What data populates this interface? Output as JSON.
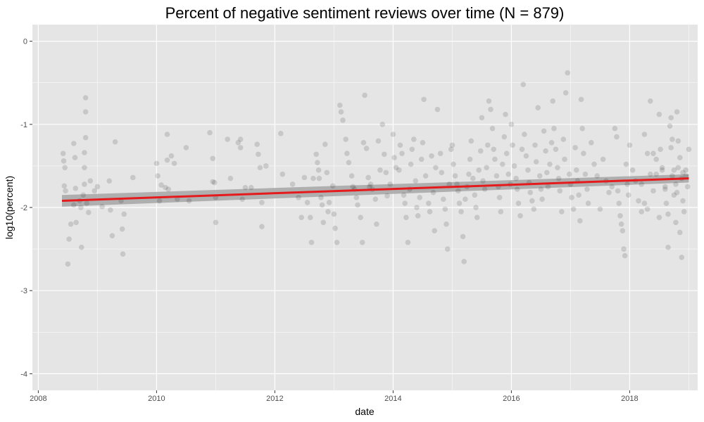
{
  "chart_data": {
    "type": "scatter",
    "title": "Percent of negative sentiment reviews over time (N = 879)",
    "xlabel": "date",
    "ylabel": "log10(percent)",
    "xlim": [
      2007.9,
      2019.15
    ],
    "ylim": [
      -4.2,
      0.2
    ],
    "x_ticks": [
      2008,
      2010,
      2012,
      2014,
      2016,
      2018
    ],
    "y_ticks": [
      0,
      -1,
      -2,
      -3,
      -4
    ],
    "grid": true,
    "legend": "none",
    "colors": {
      "panel": "#e5e5e5",
      "grid": "#ffffff",
      "point": "#000000",
      "trend": "#e41a1c",
      "ribbon": "#a6a6a6"
    },
    "trend_line": {
      "x": [
        2008.4,
        2019.0
      ],
      "y": [
        -1.92,
        -1.65
      ],
      "ci_low": [
        -1.99,
        -1.7
      ],
      "ci_high": [
        -1.85,
        -1.6
      ]
    },
    "points": [
      [
        2008.42,
        -1.35
      ],
      [
        2008.43,
        -1.44
      ],
      [
        2008.45,
        -1.52
      ],
      [
        2008.44,
        -1.74
      ],
      [
        2008.46,
        -1.8
      ],
      [
        2008.5,
        -2.68
      ],
      [
        2008.52,
        -2.38
      ],
      [
        2008.55,
        -2.2
      ],
      [
        2008.6,
        -1.23
      ],
      [
        2008.62,
        -1.4
      ],
      [
        2008.63,
        -1.77
      ],
      [
        2008.6,
        -1.97
      ],
      [
        2008.64,
        -2.18
      ],
      [
        2008.7,
        -1.92
      ],
      [
        2008.72,
        -2.0
      ],
      [
        2008.73,
        -2.48
      ],
      [
        2008.76,
        -1.85
      ],
      [
        2008.78,
        -1.72
      ],
      [
        2008.78,
        -1.52
      ],
      [
        2008.78,
        -1.34
      ],
      [
        2008.8,
        -0.85
      ],
      [
        2008.8,
        -0.68
      ],
      [
        2008.8,
        -1.16
      ],
      [
        2008.82,
        -1.95
      ],
      [
        2008.85,
        -2.06
      ],
      [
        2008.88,
        -1.68
      ],
      [
        2008.95,
        -1.8
      ],
      [
        2009.0,
        -1.75
      ],
      [
        2009.08,
        -1.99
      ],
      [
        2009.2,
        -1.68
      ],
      [
        2009.22,
        -2.03
      ],
      [
        2009.25,
        -2.34
      ],
      [
        2009.3,
        -1.21
      ],
      [
        2009.4,
        -1.92
      ],
      [
        2009.42,
        -2.26
      ],
      [
        2009.43,
        -2.56
      ],
      [
        2009.45,
        -2.08
      ],
      [
        2009.6,
        -1.64
      ],
      [
        2010.0,
        -1.47
      ],
      [
        2010.02,
        -1.62
      ],
      [
        2010.05,
        -1.92
      ],
      [
        2010.08,
        -1.73
      ],
      [
        2010.15,
        -1.76
      ],
      [
        2010.18,
        -1.12
      ],
      [
        2010.18,
        -1.43
      ],
      [
        2010.2,
        -1.78
      ],
      [
        2010.25,
        -1.38
      ],
      [
        2010.3,
        -1.47
      ],
      [
        2010.35,
        -1.9
      ],
      [
        2010.5,
        -1.28
      ],
      [
        2010.55,
        -1.92
      ],
      [
        2010.9,
        -1.1
      ],
      [
        2010.95,
        -1.41
      ],
      [
        2010.95,
        -1.69
      ],
      [
        2010.98,
        -1.7
      ],
      [
        2011.0,
        -1.88
      ],
      [
        2011.0,
        -2.18
      ],
      [
        2011.2,
        -1.18
      ],
      [
        2011.25,
        -1.65
      ],
      [
        2011.38,
        -1.22
      ],
      [
        2011.42,
        -1.18
      ],
      [
        2011.42,
        -1.28
      ],
      [
        2011.45,
        -1.9
      ],
      [
        2011.5,
        -1.76
      ],
      [
        2011.6,
        -1.76
      ],
      [
        2011.7,
        -1.24
      ],
      [
        2011.72,
        -1.36
      ],
      [
        2011.75,
        -1.52
      ],
      [
        2011.78,
        -1.94
      ],
      [
        2011.78,
        -2.23
      ],
      [
        2011.85,
        -1.5
      ],
      [
        2012.1,
        -1.11
      ],
      [
        2012.13,
        -1.6
      ],
      [
        2012.3,
        -1.72
      ],
      [
        2012.4,
        -1.88
      ],
      [
        2012.45,
        -2.12
      ],
      [
        2012.5,
        -1.64
      ],
      [
        2012.55,
        -1.94
      ],
      [
        2012.6,
        -2.12
      ],
      [
        2012.62,
        -2.42
      ],
      [
        2012.65,
        -1.65
      ],
      [
        2012.7,
        -1.36
      ],
      [
        2012.72,
        -1.46
      ],
      [
        2012.74,
        -1.55
      ],
      [
        2012.75,
        -1.65
      ],
      [
        2012.78,
        -1.88
      ],
      [
        2012.8,
        -1.97
      ],
      [
        2012.82,
        -2.18
      ],
      [
        2012.85,
        -1.24
      ],
      [
        2012.88,
        -1.58
      ],
      [
        2012.9,
        -2.05
      ],
      [
        2012.92,
        -1.94
      ],
      [
        2012.98,
        -1.74
      ],
      [
        2013.0,
        -2.08
      ],
      [
        2013.02,
        -2.25
      ],
      [
        2013.05,
        -2.42
      ],
      [
        2013.1,
        -0.77
      ],
      [
        2013.12,
        -0.85
      ],
      [
        2013.15,
        -0.95
      ],
      [
        2013.2,
        -1.18
      ],
      [
        2013.22,
        -1.35
      ],
      [
        2013.25,
        -1.46
      ],
      [
        2013.3,
        -1.62
      ],
      [
        2013.32,
        -1.75
      ],
      [
        2013.35,
        -1.78
      ],
      [
        2013.38,
        -1.88
      ],
      [
        2013.4,
        -1.97
      ],
      [
        2013.45,
        -2.12
      ],
      [
        2013.48,
        -2.42
      ],
      [
        2013.5,
        -1.22
      ],
      [
        2013.52,
        -0.65
      ],
      [
        2013.55,
        -1.29
      ],
      [
        2013.58,
        -1.64
      ],
      [
        2013.6,
        -1.75
      ],
      [
        2013.62,
        -1.72
      ],
      [
        2013.65,
        -1.78
      ],
      [
        2013.7,
        -1.9
      ],
      [
        2013.72,
        -2.2
      ],
      [
        2013.75,
        -1.2
      ],
      [
        2013.78,
        -1.55
      ],
      [
        2013.82,
        -1.0
      ],
      [
        2013.85,
        -1.36
      ],
      [
        2013.88,
        -1.58
      ],
      [
        2013.9,
        -1.86
      ],
      [
        2013.95,
        -1.72
      ],
      [
        2014.0,
        -1.12
      ],
      [
        2014.02,
        -1.4
      ],
      [
        2014.05,
        -1.52
      ],
      [
        2014.1,
        -1.55
      ],
      [
        2014.12,
        -1.25
      ],
      [
        2014.15,
        -1.35
      ],
      [
        2014.18,
        -1.85
      ],
      [
        2014.2,
        -1.95
      ],
      [
        2014.22,
        -2.12
      ],
      [
        2014.25,
        -2.42
      ],
      [
        2014.28,
        -1.78
      ],
      [
        2014.3,
        -1.48
      ],
      [
        2014.32,
        -1.3
      ],
      [
        2014.35,
        -1.18
      ],
      [
        2014.38,
        -1.68
      ],
      [
        2014.4,
        -2.0
      ],
      [
        2014.42,
        -2.1
      ],
      [
        2014.45,
        -1.88
      ],
      [
        2014.48,
        -1.42
      ],
      [
        2014.5,
        -1.22
      ],
      [
        2014.52,
        -0.7
      ],
      [
        2014.55,
        -1.62
      ],
      [
        2014.6,
        -1.95
      ],
      [
        2014.62,
        -2.05
      ],
      [
        2014.65,
        -1.38
      ],
      [
        2014.68,
        -1.82
      ],
      [
        2014.7,
        -2.28
      ],
      [
        2014.72,
        -1.52
      ],
      [
        2014.75,
        -0.82
      ],
      [
        2014.8,
        -1.35
      ],
      [
        2014.82,
        -1.58
      ],
      [
        2014.85,
        -1.9
      ],
      [
        2014.88,
        -2.02
      ],
      [
        2014.9,
        -2.2
      ],
      [
        2014.92,
        -2.5
      ],
      [
        2014.95,
        -1.72
      ],
      [
        2014.98,
        -1.3
      ],
      [
        2015.0,
        -1.25
      ],
      [
        2015.02,
        -1.48
      ],
      [
        2015.05,
        -1.62
      ],
      [
        2015.08,
        -1.72
      ],
      [
        2015.1,
        -1.8
      ],
      [
        2015.12,
        -1.95
      ],
      [
        2015.15,
        -2.05
      ],
      [
        2015.18,
        -2.35
      ],
      [
        2015.2,
        -2.65
      ],
      [
        2015.22,
        -1.9
      ],
      [
        2015.25,
        -1.75
      ],
      [
        2015.28,
        -1.6
      ],
      [
        2015.3,
        -1.42
      ],
      [
        2015.32,
        -1.2
      ],
      [
        2015.35,
        -1.65
      ],
      [
        2015.38,
        -1.85
      ],
      [
        2015.4,
        -2.0
      ],
      [
        2015.42,
        -2.12
      ],
      [
        2015.45,
        -1.55
      ],
      [
        2015.48,
        -1.32
      ],
      [
        2015.5,
        -0.92
      ],
      [
        2015.52,
        -1.68
      ],
      [
        2015.55,
        -1.78
      ],
      [
        2015.58,
        -1.52
      ],
      [
        2015.6,
        -1.25
      ],
      [
        2015.62,
        -0.72
      ],
      [
        2015.65,
        -0.82
      ],
      [
        2015.68,
        -1.05
      ],
      [
        2015.7,
        -1.3
      ],
      [
        2015.72,
        -1.42
      ],
      [
        2015.75,
        -1.62
      ],
      [
        2015.78,
        -1.75
      ],
      [
        2015.8,
        -1.88
      ],
      [
        2015.82,
        -2.05
      ],
      [
        2015.85,
        -1.48
      ],
      [
        2015.88,
        -1.15
      ],
      [
        2015.9,
        -0.88
      ],
      [
        2015.92,
        -1.35
      ],
      [
        2015.95,
        -1.6
      ],
      [
        2015.98,
        -1.72
      ],
      [
        2016.0,
        -1.0
      ],
      [
        2016.02,
        -1.25
      ],
      [
        2016.05,
        -1.5
      ],
      [
        2016.08,
        -1.65
      ],
      [
        2016.1,
        -1.78
      ],
      [
        2016.12,
        -1.95
      ],
      [
        2016.15,
        -2.1
      ],
      [
        2016.18,
        -1.3
      ],
      [
        2016.2,
        -0.52
      ],
      [
        2016.22,
        -1.12
      ],
      [
        2016.25,
        -1.38
      ],
      [
        2016.28,
        -1.55
      ],
      [
        2016.3,
        -1.7
      ],
      [
        2016.32,
        -1.82
      ],
      [
        2016.35,
        -1.92
      ],
      [
        2016.38,
        -2.02
      ],
      [
        2016.4,
        -1.25
      ],
      [
        2016.42,
        -1.45
      ],
      [
        2016.45,
        -0.8
      ],
      [
        2016.48,
        -1.62
      ],
      [
        2016.5,
        -1.78
      ],
      [
        2016.52,
        -1.9
      ],
      [
        2016.55,
        -1.08
      ],
      [
        2016.58,
        -1.32
      ],
      [
        2016.6,
        -1.58
      ],
      [
        2016.62,
        -1.75
      ],
      [
        2016.65,
        -1.48
      ],
      [
        2016.68,
        -1.22
      ],
      [
        2016.7,
        -0.72
      ],
      [
        2016.72,
        -1.05
      ],
      [
        2016.75,
        -1.3
      ],
      [
        2016.78,
        -1.52
      ],
      [
        2016.8,
        -1.65
      ],
      [
        2016.82,
        -1.8
      ],
      [
        2016.85,
        -2.05
      ],
      [
        2016.88,
        -1.18
      ],
      [
        2016.9,
        -1.42
      ],
      [
        2016.92,
        -0.62
      ],
      [
        2016.95,
        -0.38
      ],
      [
        2016.98,
        -1.6
      ],
      [
        2017.0,
        -1.72
      ],
      [
        2017.02,
        -1.88
      ],
      [
        2017.05,
        -2.02
      ],
      [
        2017.08,
        -1.28
      ],
      [
        2017.1,
        -1.55
      ],
      [
        2017.12,
        -1.68
      ],
      [
        2017.14,
        -1.85
      ],
      [
        2017.16,
        -2.16
      ],
      [
        2017.18,
        -0.7
      ],
      [
        2017.2,
        -1.05
      ],
      [
        2017.22,
        -1.35
      ],
      [
        2017.25,
        -1.6
      ],
      [
        2017.28,
        -1.78
      ],
      [
        2017.3,
        -1.95
      ],
      [
        2017.35,
        -1.22
      ],
      [
        2017.4,
        -1.48
      ],
      [
        2017.45,
        -1.62
      ],
      [
        2017.5,
        -2.02
      ],
      [
        2017.55,
        -1.42
      ],
      [
        2017.6,
        -1.68
      ],
      [
        2017.65,
        -1.82
      ],
      [
        2017.7,
        -1.75
      ],
      [
        2017.75,
        -1.05
      ],
      [
        2017.78,
        -1.15
      ],
      [
        2017.8,
        -1.8
      ],
      [
        2017.82,
        -1.95
      ],
      [
        2017.84,
        -2.1
      ],
      [
        2017.86,
        -2.2
      ],
      [
        2017.88,
        -2.28
      ],
      [
        2017.9,
        -2.5
      ],
      [
        2017.92,
        -2.58
      ],
      [
        2017.94,
        -1.48
      ],
      [
        2017.96,
        -1.72
      ],
      [
        2017.98,
        -1.85
      ],
      [
        2018.0,
        -1.25
      ],
      [
        2018.05,
        -1.55
      ],
      [
        2018.1,
        -1.68
      ],
      [
        2018.15,
        -1.92
      ],
      [
        2018.2,
        -2.05
      ],
      [
        2018.25,
        -1.12
      ],
      [
        2018.3,
        -1.35
      ],
      [
        2018.35,
        -1.6
      ],
      [
        2018.4,
        -1.8
      ],
      [
        2018.45,
        -1.42
      ],
      [
        2018.5,
        -0.88
      ],
      [
        2018.52,
        -1.3
      ],
      [
        2018.55,
        -1.52
      ],
      [
        2018.6,
        -1.75
      ],
      [
        2018.62,
        -1.95
      ],
      [
        2018.65,
        -2.48
      ],
      [
        2018.68,
        -1.02
      ],
      [
        2018.7,
        -1.28
      ],
      [
        2018.72,
        -1.62
      ],
      [
        2018.75,
        -1.85
      ],
      [
        2018.78,
        -2.18
      ],
      [
        2018.8,
        -0.85
      ],
      [
        2018.82,
        -1.2
      ],
      [
        2018.85,
        -1.4
      ],
      [
        2018.88,
        -1.65
      ],
      [
        2018.9,
        -1.92
      ],
      [
        2018.92,
        -2.05
      ],
      [
        2018.95,
        -1.55
      ],
      [
        2018.98,
        -1.75
      ],
      [
        2018.2,
        -1.72
      ],
      [
        2018.25,
        -1.95
      ],
      [
        2018.3,
        -2.02
      ],
      [
        2018.35,
        -0.72
      ],
      [
        2018.4,
        -1.35
      ],
      [
        2018.45,
        -1.6
      ],
      [
        2018.5,
        -2.12
      ],
      [
        2018.55,
        -1.55
      ],
      [
        2018.6,
        -1.78
      ],
      [
        2018.65,
        -2.08
      ],
      [
        2018.7,
        -0.92
      ],
      [
        2018.72,
        -1.18
      ],
      [
        2018.75,
        -1.55
      ],
      [
        2018.78,
        -1.72
      ],
      [
        2018.8,
        -1.82
      ],
      [
        2018.82,
        -1.52
      ],
      [
        2018.85,
        -2.3
      ],
      [
        2018.88,
        -2.6
      ],
      [
        2018.9,
        -1.58
      ],
      [
        2018.95,
        -1.62
      ],
      [
        2019.0,
        -1.3
      ]
    ]
  }
}
